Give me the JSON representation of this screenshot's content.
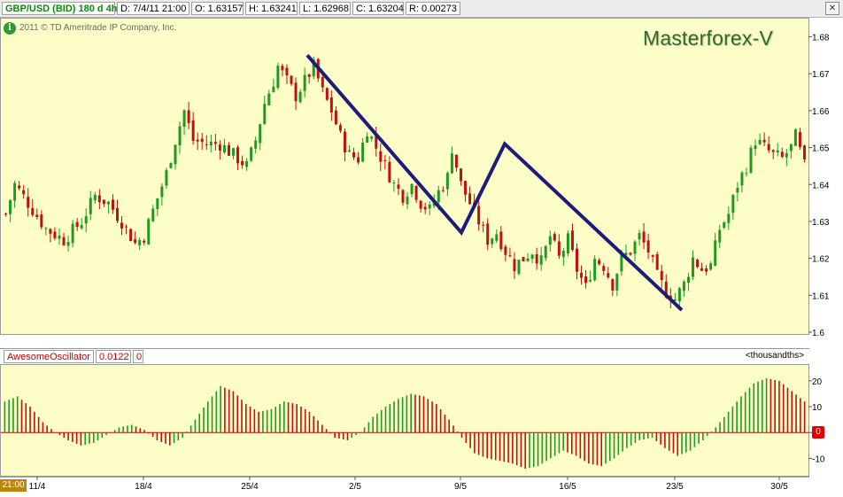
{
  "header": {
    "symbol": "GBP/USD (BID) 180 d 4h",
    "date": "D: 7/4/11 21:00",
    "open": "O: 1.63157",
    "high": "H: 1.63241",
    "low": "L: 1.62968",
    "close": "C: 1.63204",
    "range": "R: 0.00273",
    "close_icon": "close-icon"
  },
  "copyright": "2011 © TD Ameritrade IP Company, Inc.",
  "watermark": "Masterforex-V",
  "oscillator": {
    "name": "AwesomeOscillator",
    "value": "0.0122",
    "zero": "0",
    "units": "<thousandths>",
    "time_badge": "21:00",
    "zero_badge": "0"
  },
  "colors": {
    "background": "#fdfdc8",
    "bull": "#1f9a1f",
    "bear": "#c01010",
    "pattern_line": "#1c1c7c"
  },
  "chart_data": [
    {
      "type": "candlestick",
      "title": "GBP/USD (BID) 180 d 4h",
      "x_tick_labels": [
        "11/4",
        "18/4",
        "25/4",
        "2/5",
        "9/5",
        "16/5",
        "23/5",
        "30/5"
      ],
      "y_tick_labels": [
        "1.6",
        "1.61",
        "1.62",
        "1.63",
        "1.64",
        "1.65",
        "1.66",
        "1.67",
        "1.68"
      ],
      "ylim": [
        1.6,
        1.683
      ],
      "last_candle": {
        "date": "7/4/11 21:00",
        "open": 1.63157,
        "high": 1.63241,
        "low": 1.62968,
        "close": 1.63204
      },
      "close_path": [
        [
          0,
          1.632
        ],
        [
          2,
          1.64
        ],
        [
          5,
          1.635
        ],
        [
          9,
          1.628
        ],
        [
          13,
          1.625
        ],
        [
          17,
          1.63
        ],
        [
          20,
          1.637
        ],
        [
          23,
          1.635
        ],
        [
          26,
          1.63
        ],
        [
          29,
          1.624
        ],
        [
          31,
          1.626
        ],
        [
          33,
          1.633
        ],
        [
          36,
          1.643
        ],
        [
          38,
          1.652
        ],
        [
          40,
          1.66
        ],
        [
          42,
          1.652
        ],
        [
          45,
          1.651
        ],
        [
          48,
          1.651
        ],
        [
          51,
          1.648
        ],
        [
          54,
          1.645
        ],
        [
          56,
          1.652
        ],
        [
          58,
          1.662
        ],
        [
          60,
          1.668
        ],
        [
          61,
          1.672
        ],
        [
          63,
          1.668
        ],
        [
          65,
          1.664
        ],
        [
          67,
          1.668
        ],
        [
          69,
          1.672
        ],
        [
          71,
          1.665
        ],
        [
          73,
          1.66
        ],
        [
          75,
          1.653
        ],
        [
          77,
          1.648
        ],
        [
          79,
          1.647
        ],
        [
          81,
          1.655
        ],
        [
          83,
          1.65
        ],
        [
          85,
          1.645
        ],
        [
          87,
          1.64
        ],
        [
          89,
          1.637
        ],
        [
          91,
          1.64
        ],
        [
          93,
          1.635
        ],
        [
          95,
          1.633
        ],
        [
          97,
          1.638
        ],
        [
          99,
          1.642
        ],
        [
          100,
          1.65
        ],
        [
          102,
          1.64
        ],
        [
          104,
          1.635
        ],
        [
          106,
          1.63
        ],
        [
          108,
          1.625
        ],
        [
          110,
          1.627
        ],
        [
          112,
          1.622
        ],
        [
          114,
          1.618
        ],
        [
          116,
          1.62
        ],
        [
          118,
          1.622
        ],
        [
          120,
          1.619
        ],
        [
          122,
          1.626
        ],
        [
          124,
          1.62
        ],
        [
          126,
          1.625
        ],
        [
          128,
          1.617
        ],
        [
          130,
          1.612
        ],
        [
          132,
          1.62
        ],
        [
          134,
          1.618
        ],
        [
          136,
          1.613
        ],
        [
          138,
          1.62
        ],
        [
          140,
          1.622
        ],
        [
          142,
          1.626
        ],
        [
          144,
          1.622
        ],
        [
          146,
          1.615
        ],
        [
          148,
          1.611
        ],
        [
          150,
          1.609
        ],
        [
          152,
          1.613
        ],
        [
          154,
          1.62
        ],
        [
          156,
          1.617
        ],
        [
          158,
          1.618
        ],
        [
          160,
          1.628
        ],
        [
          162,
          1.632
        ],
        [
          164,
          1.64
        ],
        [
          166,
          1.645
        ],
        [
          168,
          1.652
        ],
        [
          170,
          1.65
        ],
        [
          172,
          1.648
        ],
        [
          174,
          1.647
        ],
        [
          176,
          1.65
        ],
        [
          177,
          1.653
        ],
        [
          179,
          1.645
        ]
      ],
      "pattern_line": [
        [
          "2/5",
          1.675
        ],
        [
          "9/5",
          1.627
        ],
        [
          "11/5",
          1.651
        ],
        [
          "23/5",
          1.606
        ]
      ]
    },
    {
      "type": "bar",
      "title": "AwesomeOscillator",
      "ylabel": "<thousandths>",
      "y_tick_labels": [
        "20",
        "10",
        "0",
        "-10"
      ],
      "ylim": [
        -15,
        22
      ],
      "value": 0.0122,
      "waves": [
        [
          0,
          12
        ],
        [
          3,
          14
        ],
        [
          6,
          10
        ],
        [
          9,
          4
        ],
        [
          12,
          0
        ],
        [
          15,
          -3
        ],
        [
          18,
          -5
        ],
        [
          21,
          -4
        ],
        [
          24,
          -1
        ],
        [
          27,
          2
        ],
        [
          30,
          3
        ],
        [
          33,
          1
        ],
        [
          36,
          -3
        ],
        [
          39,
          -5
        ],
        [
          42,
          -2
        ],
        [
          45,
          5
        ],
        [
          48,
          12
        ],
        [
          51,
          18
        ],
        [
          54,
          16
        ],
        [
          57,
          11
        ],
        [
          60,
          8
        ],
        [
          63,
          9
        ],
        [
          66,
          12
        ],
        [
          69,
          11
        ],
        [
          72,
          8
        ],
        [
          75,
          3
        ],
        [
          78,
          -2
        ],
        [
          81,
          -3
        ],
        [
          84,
          0
        ],
        [
          87,
          6
        ],
        [
          90,
          10
        ],
        [
          93,
          13
        ],
        [
          96,
          15
        ],
        [
          99,
          14
        ],
        [
          102,
          11
        ],
        [
          105,
          5
        ],
        [
          108,
          -2
        ],
        [
          111,
          -8
        ],
        [
          114,
          -10
        ],
        [
          117,
          -11
        ],
        [
          120,
          -12
        ],
        [
          123,
          -14
        ],
        [
          126,
          -13
        ],
        [
          129,
          -10
        ],
        [
          132,
          -7
        ],
        [
          135,
          -9
        ],
        [
          138,
          -12
        ],
        [
          141,
          -13
        ],
        [
          144,
          -10
        ],
        [
          147,
          -6
        ],
        [
          150,
          -3
        ],
        [
          153,
          -2
        ],
        [
          156,
          -6
        ],
        [
          159,
          -9
        ],
        [
          162,
          -7
        ],
        [
          165,
          -3
        ],
        [
          168,
          2
        ],
        [
          171,
          8
        ],
        [
          174,
          14
        ],
        [
          177,
          19
        ],
        [
          180,
          21
        ],
        [
          183,
          20
        ],
        [
          186,
          16
        ],
        [
          189,
          12
        ]
      ]
    }
  ]
}
